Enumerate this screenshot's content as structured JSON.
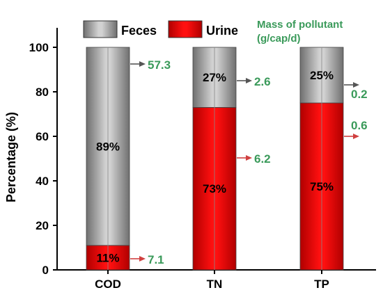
{
  "chart_data": {
    "type": "bar",
    "stacked": true,
    "percent_stacked": true,
    "categories": [
      "COD",
      "TN",
      "TP"
    ],
    "series": [
      {
        "name": "Urine",
        "values": [
          11,
          73,
          75
        ],
        "color": "#e00000",
        "labels": [
          "11%",
          "73%",
          "75%"
        ]
      },
      {
        "name": "Feces",
        "values": [
          89,
          27,
          25
        ],
        "color": "#9a9a9a",
        "labels": [
          "89%",
          "27%",
          "25%"
        ]
      }
    ],
    "ylabel": "Percentage (%)",
    "xlabel": "",
    "ylim": [
      0,
      100
    ],
    "yticks": [
      0,
      20,
      40,
      60,
      80,
      100
    ],
    "legend": {
      "position": "top",
      "entries": [
        "Feces",
        "Urine"
      ]
    },
    "annotation_title": [
      "Mass of pollutant",
      "(g/cap/d)"
    ],
    "mass_of_pollutant": [
      {
        "category": "COD",
        "feces": "57.3",
        "urine": "7.1"
      },
      {
        "category": "TN",
        "feces": "2.6",
        "urine": "6.2"
      },
      {
        "category": "TP",
        "feces": "0.2",
        "urine": "0.6"
      }
    ],
    "colors": {
      "urine": "#e00000",
      "feces": "#9a9a9a",
      "arrow_feces": "#555555",
      "arrow_urine": "#d04040",
      "mass_text": "#3a9a5a"
    }
  }
}
